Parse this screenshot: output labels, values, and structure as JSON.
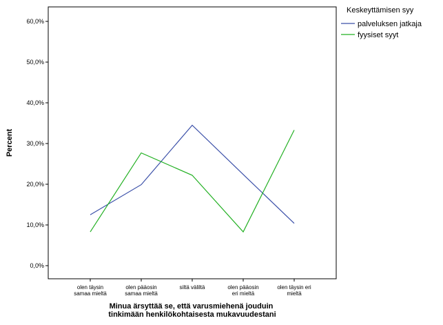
{
  "chart_data": {
    "type": "line",
    "categories": [
      [
        "olen täysin",
        "samaa mieltä"
      ],
      [
        "olen pääosin",
        "samaa mieltä"
      ],
      [
        "siltä väliltä"
      ],
      [
        "olen pääosin",
        "eri mieltä"
      ],
      [
        "olen täysin eri",
        "mieltä"
      ]
    ],
    "series": [
      {
        "name": "palveluksen jatkaja",
        "color": "#3a4fa8",
        "values": [
          12.5,
          19.9,
          34.5,
          22.4,
          10.4
        ]
      },
      {
        "name": "fyysiset syyt",
        "color": "#22b022",
        "values": [
          8.3,
          27.7,
          22.2,
          8.3,
          33.3
        ]
      }
    ],
    "title": "",
    "xlabel": [
      "Minua ärsyttää se, että varusmiehenä jouduin",
      "tinkimään henkilökohtaisesta mukavuudestani"
    ],
    "ylabel": "Percent",
    "ylim": [
      0,
      60
    ],
    "yticks": [
      {
        "value": 0,
        "label": "0,0%"
      },
      {
        "value": 10,
        "label": "10,0%"
      },
      {
        "value": 20,
        "label": "20,0%"
      },
      {
        "value": 30,
        "label": "30,0%"
      },
      {
        "value": 40,
        "label": "40,0%"
      },
      {
        "value": 50,
        "label": "50,0%"
      },
      {
        "value": 60,
        "label": "60,0%"
      }
    ],
    "legend": {
      "title": "Keskeyttämisen syy",
      "placement": "top-right"
    },
    "grid": false
  }
}
